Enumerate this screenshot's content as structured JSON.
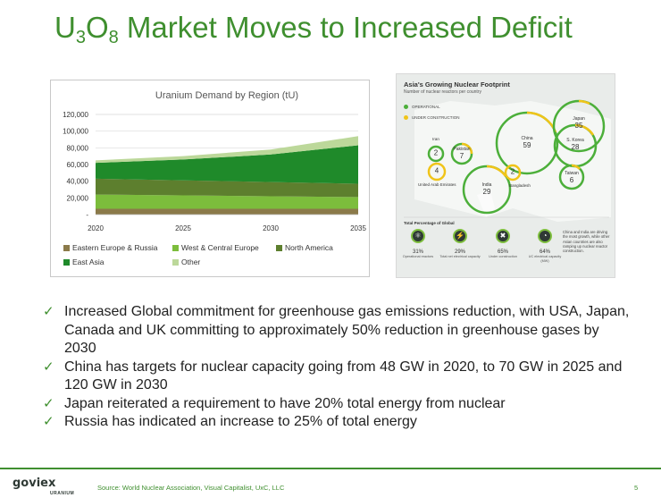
{
  "slide": {
    "title_parts": [
      "U",
      "3",
      "O",
      "8",
      " Market Moves to Increased Deficit"
    ],
    "bullets": [
      "Increased Global commitment for greenhouse gas emissions reduction, with USA, Japan, Canada and UK committing to approximately 50% reduction in greenhouse gases by 2030",
      "China has targets for nuclear capacity going from 48 GW in 2020, to 70 GW in 2025 and 120 GW in 2030",
      "Japan reiterated a requirement to have 20% total energy from nuclear",
      "Russia has indicated an increase to 25% of total energy"
    ],
    "check_glyph": "✓",
    "source": "Source: World Nuclear Association, Visual Capitalist, UxC, LLC",
    "page_number": "5",
    "logo_text": "goviex",
    "logo_sub": "URANIUM",
    "accent_color": "#3f8f2f"
  },
  "chart_data": {
    "type": "area",
    "title": "Uranium Demand by Region (tU)",
    "x": [
      2020,
      2025,
      2030,
      2035
    ],
    "x_ticks": [
      "2020",
      "2025",
      "2030",
      "2035"
    ],
    "y_ticks": [
      "-",
      "20,000",
      "40,000",
      "60,000",
      "80,000",
      "100,000",
      "120,000"
    ],
    "ylim": [
      0,
      120000
    ],
    "stacked": true,
    "grid": true,
    "legend_position": "bottom",
    "series": [
      {
        "name": "Eastern Europe & Russia",
        "color": "#8b7a4a",
        "values": [
          7000,
          7000,
          7000,
          7000
        ]
      },
      {
        "name": "West & Central Europe",
        "color": "#7cbd3c",
        "values": [
          17000,
          16000,
          15000,
          14000
        ]
      },
      {
        "name": "North  America",
        "color": "#5d7f2e",
        "values": [
          19000,
          18000,
          17000,
          16000
        ]
      },
      {
        "name": "East Asia",
        "color": "#1f8a2a",
        "values": [
          19000,
          25000,
          33000,
          46000
        ]
      },
      {
        "name": "Other",
        "color": "#bcd89a",
        "values": [
          3000,
          4000,
          6000,
          11000
        ]
      }
    ]
  },
  "infographic": {
    "title": "Asia's Growing Nuclear Footprint",
    "subtitle": "Number of nuclear reactors per country",
    "legend_operational": "OPERATIONAL",
    "legend_construction": "UNDER CONSTRUCTION",
    "color_operational": "#4caf3a",
    "color_construction": "#f0c419",
    "countries": [
      {
        "name": "Iran",
        "value": "2"
      },
      {
        "name": "Pakistan",
        "value": "7"
      },
      {
        "name": "United Arab Emirates",
        "value": "4"
      },
      {
        "name": "India",
        "value": "29"
      },
      {
        "name": "China",
        "value": "59"
      },
      {
        "name": "Japan",
        "value": "35"
      },
      {
        "name": "S. Korea",
        "value": "28"
      },
      {
        "name": "Taiwan",
        "value": "6"
      },
      {
        "name": "Bangladesh",
        "value": "2"
      }
    ],
    "stats_title": "Total Percentage of Global",
    "stats": [
      {
        "value": "31%",
        "label": "Operational reactors"
      },
      {
        "value": "29%",
        "label": "Total net electrical capacity"
      },
      {
        "value": "65%",
        "label": "Under construction"
      },
      {
        "value": "64%",
        "label": "UC electrical capacity (MW)"
      }
    ],
    "note": "China and India are driving the most growth, while other Asian countries are also ramping up nuclear reactor construction."
  }
}
